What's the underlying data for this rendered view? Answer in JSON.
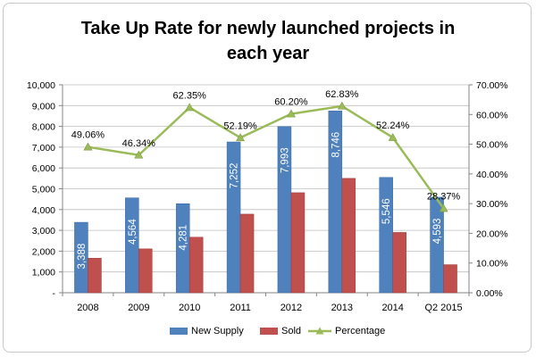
{
  "chart_data": {
    "type": "bar",
    "title_lines": [
      "Take Up Rate for newly launched projects in",
      "each year"
    ],
    "categories": [
      "2008",
      "2009",
      "2010",
      "2011",
      "2012",
      "2013",
      "2014",
      "Q2 2015"
    ],
    "series": [
      {
        "name": "New Supply",
        "type": "bar",
        "axis": "left",
        "color": "#4f81bd",
        "values": [
          3388,
          4564,
          4281,
          7252,
          7993,
          8746,
          5546,
          4593
        ],
        "labels": [
          "3,388",
          "4,564",
          "4,281",
          "7,252",
          "7,993",
          "8,746",
          "5,546",
          "4,593"
        ]
      },
      {
        "name": "Sold",
        "type": "bar",
        "axis": "left",
        "color": "#c0504d",
        "values": [
          1660,
          2110,
          2670,
          3780,
          4810,
          5500,
          2900,
          1350
        ]
      },
      {
        "name": "Percentage",
        "type": "line",
        "axis": "right",
        "color": "#9bbb59",
        "values": [
          49.06,
          46.34,
          62.35,
          52.19,
          60.2,
          62.83,
          52.24,
          28.37
        ],
        "labels": [
          "49.06%",
          "46.34%",
          "62.35%",
          "52.19%",
          "60.20%",
          "62.83%",
          "52.24%",
          "28.37%"
        ]
      }
    ],
    "y_left": {
      "range": [
        0,
        10000
      ],
      "ticks": [
        "-",
        "1,000",
        "2,000",
        "3,000",
        "4,000",
        "5,000",
        "6,000",
        "7,000",
        "8,000",
        "9,000",
        "10,000"
      ]
    },
    "y_right": {
      "range": [
        0,
        70
      ],
      "ticks": [
        "0.00%",
        "10.00%",
        "20.00%",
        "30.00%",
        "40.00%",
        "50.00%",
        "60.00%",
        "70.00%"
      ]
    },
    "grid": "horizontal",
    "legend_position": "bottom"
  }
}
